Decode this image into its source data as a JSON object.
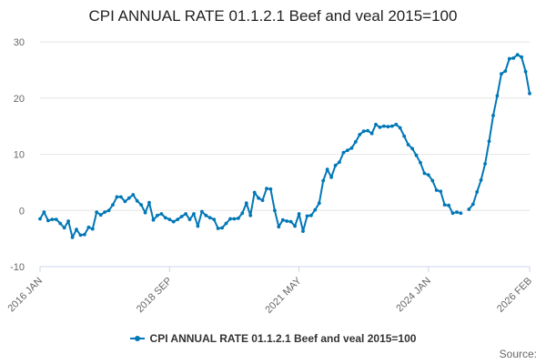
{
  "colors": {
    "series": "#0077b6",
    "grid": "#e6e6e6",
    "axis_text": "#666666"
  },
  "source_label": "Source:",
  "chart_data": {
    "type": "line",
    "title": "CPI ANNUAL RATE 01.1.2.1 Beef and veal 2015=100",
    "xlabel": "",
    "ylabel": "",
    "ylim": [
      -10,
      30
    ],
    "yticks": [
      -10,
      0,
      10,
      20,
      30
    ],
    "xlim": [
      0,
      121
    ],
    "xticks": [
      {
        "label": "2016 JAN",
        "index": 0
      },
      {
        "label": "2018 SEP",
        "index": 32
      },
      {
        "label": "2021 MAY",
        "index": 64
      },
      {
        "label": "2024 JAN",
        "index": 96
      },
      {
        "label": "2026 FEB",
        "index": 121
      }
    ],
    "series": [
      {
        "name": "CPI ANNUAL RATE 01.1.2.1 Beef and veal 2015=100",
        "start": "2016 JAN",
        "values": [
          -1.5,
          -0.3,
          -1.8,
          -1.6,
          -1.6,
          -2.3,
          -3.1,
          -1.9,
          -4.8,
          -3.4,
          -4.4,
          -4.3,
          -3.0,
          -3.3,
          -0.3,
          -0.8,
          -0.3,
          0.0,
          1.0,
          2.4,
          2.4,
          1.6,
          2.2,
          2.8,
          1.7,
          1.0,
          -0.4,
          1.4,
          -1.7,
          -0.9,
          -0.6,
          -1.3,
          -1.6,
          -2.0,
          -1.6,
          -1.1,
          -0.6,
          -1.6,
          -0.6,
          -2.8,
          -0.2,
          -0.9,
          -1.3,
          -1.6,
          -3.2,
          -3.1,
          -2.3,
          -1.5,
          -1.5,
          -1.4,
          -0.5,
          1.3,
          -0.9,
          3.2,
          2.2,
          1.8,
          3.9,
          3.8,
          0.0,
          -2.9,
          -1.7,
          -1.9,
          -2.0,
          -2.8,
          -0.6,
          -3.7,
          -1.0,
          -0.9,
          0.1,
          1.3,
          5.3,
          7.3,
          5.9,
          8.0,
          8.6,
          10.3,
          10.7,
          11.1,
          12.2,
          13.5,
          14.1,
          14.2,
          13.7,
          15.3,
          14.8,
          15.0,
          14.9,
          15.0,
          15.3,
          14.7,
          13.2,
          11.7,
          11.0,
          9.8,
          8.5,
          6.6,
          6.3,
          5.3,
          3.6,
          3.4,
          1.0,
          0.9,
          -0.5,
          -0.3,
          -0.5,
          null,
          0.2,
          1.1,
          3.3,
          5.4,
          8.3,
          12.3,
          16.9,
          20.4,
          24.3,
          24.8,
          27.0,
          27.1,
          27.7,
          27.3,
          24.7,
          20.8
        ]
      }
    ],
    "legend_position": "bottom-center"
  }
}
